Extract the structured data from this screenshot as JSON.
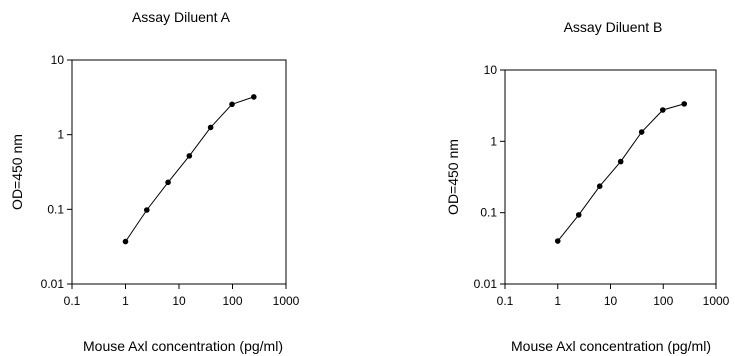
{
  "chart_data": [
    {
      "type": "scatter",
      "title": "Assay Diluent A",
      "xlabel": "Mouse Axl concentration (pg/ml)",
      "ylabel": "OD=450 nm",
      "xscale": "log",
      "yscale": "log",
      "xlim": [
        0.1,
        1000
      ],
      "ylim": [
        0.01,
        10
      ],
      "xticks": [
        "0.1",
        "1",
        "10",
        "100",
        "1000"
      ],
      "yticks": [
        "0.01",
        "0.1",
        "1",
        "10"
      ],
      "grid": false,
      "series": [
        {
          "x": [
            1,
            2.5,
            6.25,
            15.6,
            39,
            98,
            250
          ],
          "y": [
            0.037,
            0.098,
            0.23,
            0.52,
            1.25,
            2.55,
            3.2
          ]
        }
      ]
    },
    {
      "type": "scatter",
      "title": "Assay Diluent B",
      "xlabel": "Mouse Axl concentration (pg/ml)",
      "ylabel": "OD=450 nm",
      "xscale": "log",
      "yscale": "log",
      "xlim": [
        0.1,
        1000
      ],
      "ylim": [
        0.01,
        10
      ],
      "xticks": [
        "0.1",
        "1",
        "10",
        "100",
        "1000"
      ],
      "yticks": [
        "0.01",
        "0.1",
        "1",
        "10"
      ],
      "grid": false,
      "series": [
        {
          "x": [
            1,
            2.5,
            6.25,
            15.6,
            39,
            98,
            250
          ],
          "y": [
            0.04,
            0.093,
            0.235,
            0.52,
            1.35,
            2.75,
            3.35
          ]
        }
      ]
    }
  ]
}
